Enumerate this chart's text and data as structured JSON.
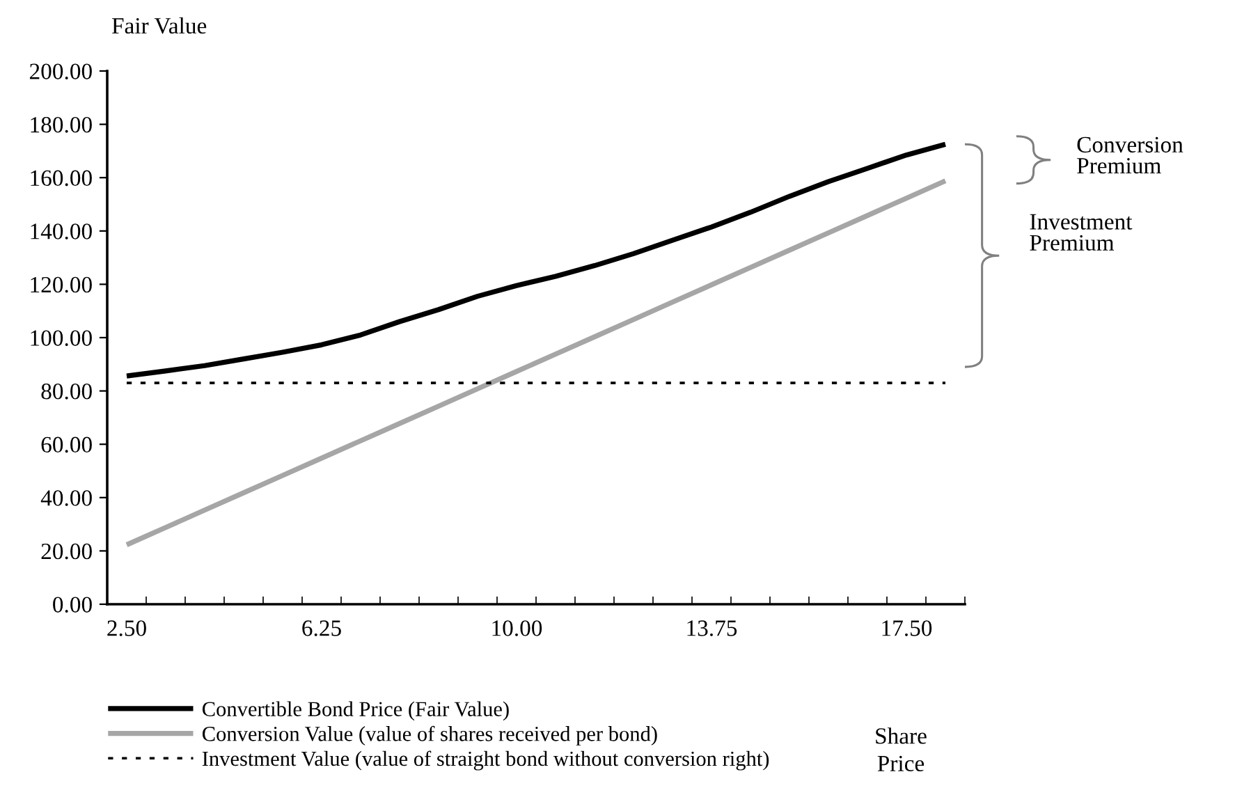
{
  "chart_data": {
    "type": "line",
    "ylabel": "Fair Value",
    "xlabel": "Share\nPrice",
    "categories": [
      "2.50",
      null,
      null,
      null,
      null,
      "6.25",
      null,
      null,
      null,
      null,
      "10.00",
      null,
      null,
      null,
      null,
      "13.75",
      null,
      null,
      null,
      null,
      "17.50",
      null
    ],
    "series": [
      {
        "name": "Convertible Bond Price (Fair Value)",
        "color": "#000000",
        "line_style": "solid",
        "values": [
          85.6,
          87.5,
          89.5,
          92,
          94.5,
          97.3,
          101,
          106,
          110.5,
          115.5,
          119.5,
          123,
          127,
          131.5,
          136.5,
          141.5,
          147,
          153,
          158.5,
          163.5,
          168.5,
          172.5
        ]
      },
      {
        "name": "Conversion Value (value of shares received per bond)",
        "color": "#a6a6a6",
        "line_style": "solid",
        "values": [
          22.3,
          28.8,
          35.3,
          41.8,
          48.3,
          54.8,
          61.3,
          67.8,
          74.3,
          80.8,
          87.3,
          93.8,
          100.3,
          106.8,
          113.3,
          119.8,
          126.3,
          132.8,
          139.3,
          145.8,
          152.3,
          158.8
        ]
      },
      {
        "name": "Investment Value (value of straight bond without conversion right)",
        "color": "#000000",
        "line_style": "dotted",
        "values": [
          83,
          83,
          83,
          83,
          83,
          83,
          83,
          83,
          83,
          83,
          83,
          83,
          83,
          83,
          83,
          83,
          83,
          83,
          83,
          83,
          83,
          83
        ]
      }
    ],
    "ylim": [
      0,
      200
    ],
    "yticks": [
      {
        "value": 0,
        "label": "0.00"
      },
      {
        "value": 20,
        "label": "20.00"
      },
      {
        "value": 40,
        "label": "40.00"
      },
      {
        "value": 60,
        "label": "60.00"
      },
      {
        "value": 80,
        "label": "80.00"
      },
      {
        "value": 100,
        "label": "100.00"
      },
      {
        "value": 120,
        "label": "120.00"
      },
      {
        "value": 140,
        "label": "140.00"
      },
      {
        "value": 160,
        "label": "160.00"
      },
      {
        "value": 180,
        "label": "180.00"
      },
      {
        "value": 200,
        "label": "200.00"
      }
    ],
    "annotations": [
      "Conversion\nPremium",
      "Investment\nPremium"
    ],
    "legend": "bottom",
    "grid": false,
    "marker": "none"
  }
}
